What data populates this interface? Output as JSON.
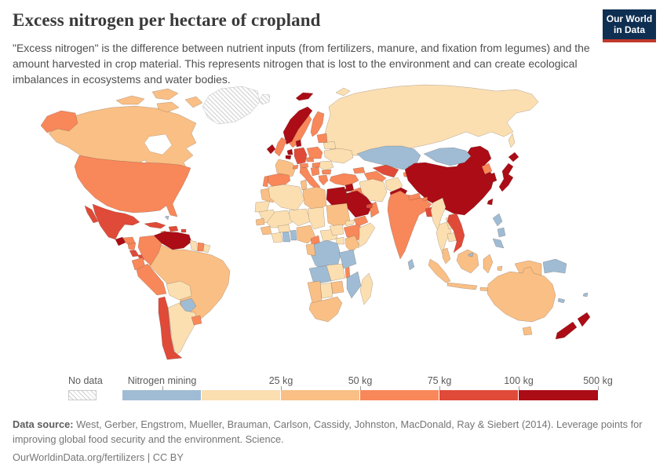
{
  "header": {
    "title": "Excess nitrogen per hectare of cropland",
    "subtitle": "\"Excess nitrogen\" is the difference between nutrient inputs (from fertilizers, manure, and fixation from legumes) and the amount harvested in crop material. This represents nitrogen that is lost to the environment and can create ecological imbalances in ecosystems and water bodies.",
    "logo": {
      "line1": "Our World",
      "line2": "in Data",
      "bg": "#0e2f52",
      "accent": "#bf392c"
    }
  },
  "legend": {
    "no_data_label": "No data",
    "bins": [
      {
        "key": "mining",
        "label": "Nitrogen mining",
        "color": "#9fbcd4"
      },
      {
        "key": "b0_25",
        "label": "25 kg",
        "color": "#fbdfb1"
      },
      {
        "key": "b25_50",
        "label": "50 kg",
        "color": "#f9bf85"
      },
      {
        "key": "b50_75",
        "label": "75 kg",
        "color": "#f8875a"
      },
      {
        "key": "b75_100",
        "label": "100 kg",
        "color": "#e04a38"
      },
      {
        "key": "b100_500",
        "label": "500 kg",
        "color": "#ab0c15"
      }
    ]
  },
  "map": {
    "countries": [
      {
        "name": "russia",
        "bin": "b0_25"
      },
      {
        "name": "canada",
        "bin": "b25_50"
      },
      {
        "name": "canada-arctic-1",
        "bin": "b25_50"
      },
      {
        "name": "canada-arctic-2",
        "bin": "b25_50"
      },
      {
        "name": "canada-arctic-3",
        "bin": "b25_50"
      },
      {
        "name": "canada-arctic-4",
        "bin": "b25_50"
      },
      {
        "name": "greenland",
        "bin": "no_data"
      },
      {
        "name": "iceland",
        "bin": "no_data"
      },
      {
        "name": "alaska",
        "bin": "b50_75"
      },
      {
        "name": "usa",
        "bin": "b50_75"
      },
      {
        "name": "mexico",
        "bin": "b75_100"
      },
      {
        "name": "baja",
        "bin": "b75_100"
      },
      {
        "name": "guatemala",
        "bin": "b100_500"
      },
      {
        "name": "honduras",
        "bin": "b50_75"
      },
      {
        "name": "nicaragua",
        "bin": "b50_75"
      },
      {
        "name": "costa-rica",
        "bin": "b75_100"
      },
      {
        "name": "panama",
        "bin": "b75_100"
      },
      {
        "name": "cuba",
        "bin": "b75_100"
      },
      {
        "name": "hispaniola",
        "bin": "b75_100"
      },
      {
        "name": "jamaica",
        "bin": "b50_75"
      },
      {
        "name": "puerto-rico",
        "bin": "b75_100"
      },
      {
        "name": "bahamas",
        "bin": "mining"
      },
      {
        "name": "brazil",
        "bin": "b25_50"
      },
      {
        "name": "venezuela",
        "bin": "b100_500"
      },
      {
        "name": "colombia",
        "bin": "b50_75"
      },
      {
        "name": "guyana",
        "bin": "b0_25"
      },
      {
        "name": "suriname",
        "bin": "b50_75"
      },
      {
        "name": "fr-guiana",
        "bin": "b0_25"
      },
      {
        "name": "ecuador",
        "bin": "b50_75"
      },
      {
        "name": "peru",
        "bin": "b50_75"
      },
      {
        "name": "bolivia",
        "bin": "b0_25"
      },
      {
        "name": "paraguay",
        "bin": "mining"
      },
      {
        "name": "argentina",
        "bin": "b0_25"
      },
      {
        "name": "chile",
        "bin": "b75_100"
      },
      {
        "name": "uruguay",
        "bin": "b50_75"
      },
      {
        "name": "svalbard",
        "bin": "b100_500"
      },
      {
        "name": "novaya-zemlya",
        "bin": "b0_25"
      },
      {
        "name": "finland",
        "bin": "b50_75"
      },
      {
        "name": "sweden",
        "bin": "b50_75"
      },
      {
        "name": "norway",
        "bin": "b100_500"
      },
      {
        "name": "denmark",
        "bin": "b100_500"
      },
      {
        "name": "uk",
        "bin": "b50_75"
      },
      {
        "name": "ireland",
        "bin": "b100_500"
      },
      {
        "name": "france",
        "bin": "b25_50"
      },
      {
        "name": "germany",
        "bin": "b75_100"
      },
      {
        "name": "netherlands",
        "bin": "b100_500"
      },
      {
        "name": "belgium",
        "bin": "b100_500"
      },
      {
        "name": "spain",
        "bin": "b50_75"
      },
      {
        "name": "portugal",
        "bin": "b50_75"
      },
      {
        "name": "italy",
        "bin": "b50_75"
      },
      {
        "name": "sicily",
        "bin": "b50_75"
      },
      {
        "name": "switzerland",
        "bin": "b50_75"
      },
      {
        "name": "austria",
        "bin": "b50_75"
      },
      {
        "name": "czechia",
        "bin": "b50_75"
      },
      {
        "name": "poland",
        "bin": "b50_75"
      },
      {
        "name": "hungary",
        "bin": "b50_75"
      },
      {
        "name": "balkans",
        "bin": "b50_75"
      },
      {
        "name": "romania",
        "bin": "b0_25"
      },
      {
        "name": "bulgaria",
        "bin": "b50_75"
      },
      {
        "name": "greece",
        "bin": "b50_75"
      },
      {
        "name": "baltics",
        "bin": "b50_75"
      },
      {
        "name": "belarus",
        "bin": "b0_25"
      },
      {
        "name": "ukraine",
        "bin": "b0_25"
      },
      {
        "name": "kazakhstan",
        "bin": "mining"
      },
      {
        "name": "uzbekistan",
        "bin": "b75_100"
      },
      {
        "name": "turkmenistan",
        "bin": "b50_75"
      },
      {
        "name": "kyrgyzstan",
        "bin": "mining"
      },
      {
        "name": "tajikistan",
        "bin": "b50_75"
      },
      {
        "name": "caucasus",
        "bin": "b50_75"
      },
      {
        "name": "turkey",
        "bin": "b50_75"
      },
      {
        "name": "syria",
        "bin": "b100_500"
      },
      {
        "name": "iraq",
        "bin": "b50_75"
      },
      {
        "name": "iran",
        "bin": "b0_25"
      },
      {
        "name": "afghanistan",
        "bin": "b0_25"
      },
      {
        "name": "pakistan",
        "bin": "b100_500"
      },
      {
        "name": "saudi-arabia",
        "bin": "b100_500"
      },
      {
        "name": "jordan-israel",
        "bin": "b100_500"
      },
      {
        "name": "yemen",
        "bin": "b50_75"
      },
      {
        "name": "oman",
        "bin": "b50_75"
      },
      {
        "name": "uae",
        "bin": "b75_100"
      },
      {
        "name": "egypt",
        "bin": "b100_500"
      },
      {
        "name": "china",
        "bin": "b100_500"
      },
      {
        "name": "mongolia",
        "bin": "mining"
      },
      {
        "name": "north-korea",
        "bin": "b50_75"
      },
      {
        "name": "south-korea",
        "bin": "b100_500"
      },
      {
        "name": "japan-hokkaido",
        "bin": "b100_500"
      },
      {
        "name": "japan-main",
        "bin": "b100_500"
      },
      {
        "name": "taiwan",
        "bin": "b100_500"
      },
      {
        "name": "sakhalin",
        "bin": "b0_25"
      },
      {
        "name": "india",
        "bin": "b50_75"
      },
      {
        "name": "nepal",
        "bin": "b50_75"
      },
      {
        "name": "bhutan",
        "bin": "b50_75"
      },
      {
        "name": "bangladesh",
        "bin": "b75_100"
      },
      {
        "name": "sri-lanka",
        "bin": "mining"
      },
      {
        "name": "myanmar",
        "bin": "b0_25"
      },
      {
        "name": "thailand",
        "bin": "b0_25"
      },
      {
        "name": "laos",
        "bin": "b0_25"
      },
      {
        "name": "cambodia",
        "bin": "b0_25"
      },
      {
        "name": "vietnam",
        "bin": "b75_100"
      },
      {
        "name": "malaysia",
        "bin": "b25_50"
      },
      {
        "name": "sumatra",
        "bin": "b25_50"
      },
      {
        "name": "java",
        "bin": "b25_50"
      },
      {
        "name": "borneo",
        "bin": "b25_50"
      },
      {
        "name": "brunei",
        "bin": "mining"
      },
      {
        "name": "sulawesi",
        "bin": "b25_50"
      },
      {
        "name": "lesser-sunda",
        "bin": "b25_50"
      },
      {
        "name": "maluku",
        "bin": "b25_50"
      },
      {
        "name": "west-papua",
        "bin": "b25_50"
      },
      {
        "name": "png",
        "bin": "mining"
      },
      {
        "name": "philippines-1",
        "bin": "mining"
      },
      {
        "name": "philippines-2",
        "bin": "mining"
      },
      {
        "name": "philippines-3",
        "bin": "mining"
      },
      {
        "name": "australia",
        "bin": "b25_50"
      },
      {
        "name": "tasmania",
        "bin": "b25_50"
      },
      {
        "name": "nz-north",
        "bin": "b100_500"
      },
      {
        "name": "nz-south",
        "bin": "b100_500"
      },
      {
        "name": "new-caledonia",
        "bin": "mining"
      },
      {
        "name": "fiji",
        "bin": "mining"
      },
      {
        "name": "morocco",
        "bin": "b25_50"
      },
      {
        "name": "w-sahara",
        "bin": "b0_25"
      },
      {
        "name": "algeria",
        "bin": "b0_25"
      },
      {
        "name": "tunisia",
        "bin": "b25_50"
      },
      {
        "name": "libya",
        "bin": "b25_50"
      },
      {
        "name": "mauritania",
        "bin": "b0_25"
      },
      {
        "name": "mali",
        "bin": "b0_25"
      },
      {
        "name": "senegal",
        "bin": "b25_50"
      },
      {
        "name": "guinea",
        "bin": "b25_50"
      },
      {
        "name": "ivory-coast",
        "bin": "b0_25"
      },
      {
        "name": "ghana",
        "bin": "mining"
      },
      {
        "name": "togo-benin",
        "bin": "mining"
      },
      {
        "name": "burkina",
        "bin": "b0_25"
      },
      {
        "name": "niger",
        "bin": "b0_25"
      },
      {
        "name": "chad",
        "bin": "b0_25"
      },
      {
        "name": "nigeria",
        "bin": "b25_50"
      },
      {
        "name": "cameroon",
        "bin": "b50_75"
      },
      {
        "name": "car",
        "bin": "b0_25"
      },
      {
        "name": "sudan",
        "bin": "b25_50"
      },
      {
        "name": "eritrea",
        "bin": "b0_25"
      },
      {
        "name": "ethiopia",
        "bin": "b50_75"
      },
      {
        "name": "somalia",
        "bin": "b0_25"
      },
      {
        "name": "south-sudan",
        "bin": "b0_25"
      },
      {
        "name": "uganda",
        "bin": "b0_25"
      },
      {
        "name": "kenya",
        "bin": "b25_50"
      },
      {
        "name": "drc",
        "bin": "mining"
      },
      {
        "name": "gabon-congo",
        "bin": "b25_50"
      },
      {
        "name": "tanzania",
        "bin": "mining"
      },
      {
        "name": "angola",
        "bin": "mining"
      },
      {
        "name": "zambia",
        "bin": "b0_25"
      },
      {
        "name": "malawi",
        "bin": "b50_75"
      },
      {
        "name": "mozambique",
        "bin": "mining"
      },
      {
        "name": "zimbabwe",
        "bin": "b25_50"
      },
      {
        "name": "botswana",
        "bin": "b0_25"
      },
      {
        "name": "namibia",
        "bin": "b25_50"
      },
      {
        "name": "south-africa",
        "bin": "b25_50"
      },
      {
        "name": "madagascar",
        "bin": "b0_25"
      }
    ]
  },
  "footer": {
    "source_label": "Data source:",
    "source_text": " West, Gerber, Engstrom, Mueller, Brauman, Carlson, Cassidy, Johnston, MacDonald, Ray & Siebert (2014). Leverage points for improving global food security and the environment. Science.",
    "license_text": "OurWorldinData.org/fertilizers | CC BY"
  }
}
